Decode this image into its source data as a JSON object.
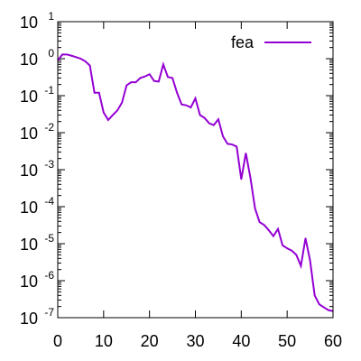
{
  "chart_data": {
    "type": "line",
    "title": "",
    "xlabel": "",
    "ylabel": "",
    "xlim": [
      0,
      60
    ],
    "ylim": [
      1e-07,
      10
    ],
    "y_scale": "log",
    "grid": false,
    "legend_position": "top-right",
    "x_ticks": [
      0,
      10,
      20,
      30,
      40,
      50,
      60
    ],
    "x_tick_labels": [
      "0",
      "10",
      "20",
      "30",
      "40",
      "50",
      "60"
    ],
    "y_ticks": [
      {
        "value": 10,
        "base": "10",
        "exp": "1"
      },
      {
        "value": 1,
        "base": "10",
        "exp": "0"
      },
      {
        "value": 0.1,
        "base": "10",
        "exp": "-1"
      },
      {
        "value": 0.01,
        "base": "10",
        "exp": "-2"
      },
      {
        "value": 0.001,
        "base": "10",
        "exp": "-3"
      },
      {
        "value": 0.0001,
        "base": "10",
        "exp": "-4"
      },
      {
        "value": 1e-05,
        "base": "10",
        "exp": "-5"
      },
      {
        "value": 1e-06,
        "base": "10",
        "exp": "-6"
      },
      {
        "value": 1e-07,
        "base": "10",
        "exp": "-7"
      }
    ],
    "series": [
      {
        "name": "fea",
        "color": "#9400d3",
        "x": [
          0,
          1,
          2,
          3,
          4,
          5,
          6,
          7,
          8,
          9,
          10,
          11,
          12,
          13,
          14,
          15,
          16,
          17,
          18,
          19,
          20,
          21,
          22,
          23,
          24,
          25,
          26,
          27,
          28,
          29,
          30,
          31,
          32,
          33,
          34,
          35,
          36,
          37,
          38,
          39,
          40,
          41,
          42,
          43,
          44,
          45,
          46,
          47,
          48,
          49,
          50,
          51,
          52,
          53,
          54,
          55,
          56,
          57,
          58,
          59,
          60
        ],
        "y": [
          0.9,
          1.3,
          1.3,
          1.2,
          1.1,
          1.0,
          0.85,
          0.65,
          0.12,
          0.12,
          0.035,
          0.022,
          0.03,
          0.04,
          0.065,
          0.19,
          0.23,
          0.23,
          0.3,
          0.33,
          0.38,
          0.25,
          0.24,
          0.7,
          0.32,
          0.3,
          0.12,
          0.058,
          0.055,
          0.048,
          0.085,
          0.03,
          0.025,
          0.018,
          0.016,
          0.023,
          0.008,
          0.005,
          0.0048,
          0.0042,
          0.00055,
          0.0028,
          0.0006,
          9e-05,
          3.8e-05,
          3.2e-05,
          2.3e-05,
          1.6e-05,
          2.5e-05,
          9e-06,
          7.5e-06,
          6.5e-06,
          5e-06,
          2.5e-06,
          1.4e-05,
          3.5e-06,
          4e-07,
          2.3e-07,
          1.9e-07,
          1.6e-07,
          1.5e-07
        ]
      }
    ]
  }
}
